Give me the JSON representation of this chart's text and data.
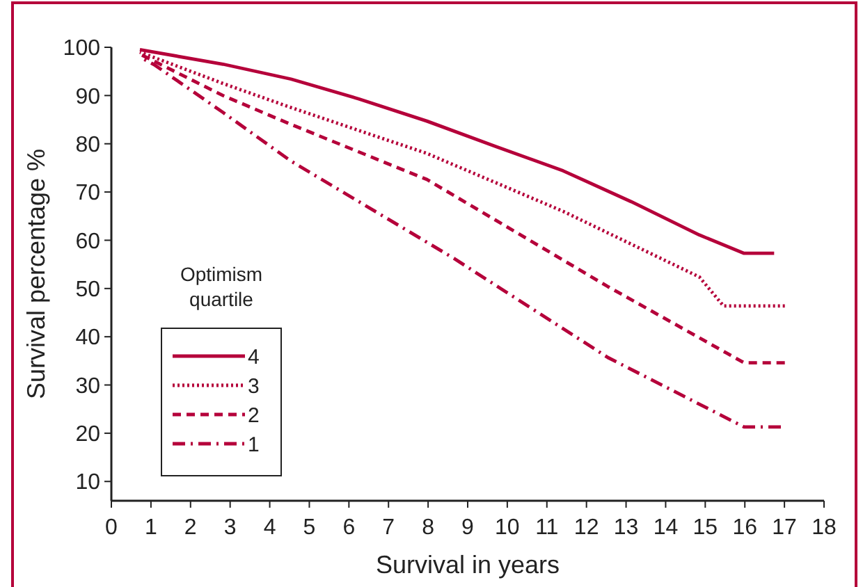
{
  "chart_data": {
    "type": "line",
    "xlabel": "Survival in years",
    "ylabel": "Survival percentage %",
    "legend_title": "Optimism quartile",
    "legend": "bottom left",
    "grid": false,
    "xlim": [
      0,
      18
    ],
    "xticks": [
      0,
      1,
      2,
      3,
      4,
      5,
      6,
      7,
      8,
      9,
      10,
      11,
      12,
      13,
      14,
      15,
      16,
      17,
      18
    ],
    "ylim": [
      6,
      100
    ],
    "yticks": [
      10,
      20,
      30,
      40,
      50,
      60,
      70,
      80,
      90,
      100
    ],
    "series": [
      {
        "name": "4",
        "color": "#b5003a",
        "line_style": "solid",
        "x": [
          0.72,
          2.82,
          4.54,
          6.25,
          7.97,
          9.69,
          11.41,
          13.13,
          14.85,
          15.98,
          16.74
        ],
        "values": [
          99.5,
          96.5,
          93.4,
          89.3,
          84.7,
          79.5,
          74.4,
          68,
          61.1,
          57.3,
          57.3
        ]
      },
      {
        "name": "3",
        "color": "#b5003a",
        "line_style": "dotted",
        "x": [
          0.72,
          2.82,
          4.54,
          7.97,
          11.41,
          14.85,
          15.46,
          17.01
        ],
        "values": [
          99,
          92.5,
          87.5,
          78,
          66,
          52.4,
          46.4,
          46.4
        ]
      },
      {
        "name": "2",
        "color": "#b5003a",
        "line_style": "dashed",
        "x": [
          0.72,
          2.82,
          4.54,
          7.97,
          12.54,
          15.98,
          17.01
        ],
        "values": [
          98.6,
          90,
          84,
          72.6,
          50.4,
          34.6,
          34.6
        ]
      },
      {
        "name": "1",
        "color": "#b5003a",
        "line_style": "dashdot",
        "x": [
          0.72,
          1.1,
          2.82,
          4.54,
          8.66,
          12.54,
          15.98,
          16.91
        ],
        "values": [
          98,
          96.3,
          86.5,
          76.4,
          56.2,
          35.7,
          21.3,
          21.3
        ]
      }
    ]
  }
}
